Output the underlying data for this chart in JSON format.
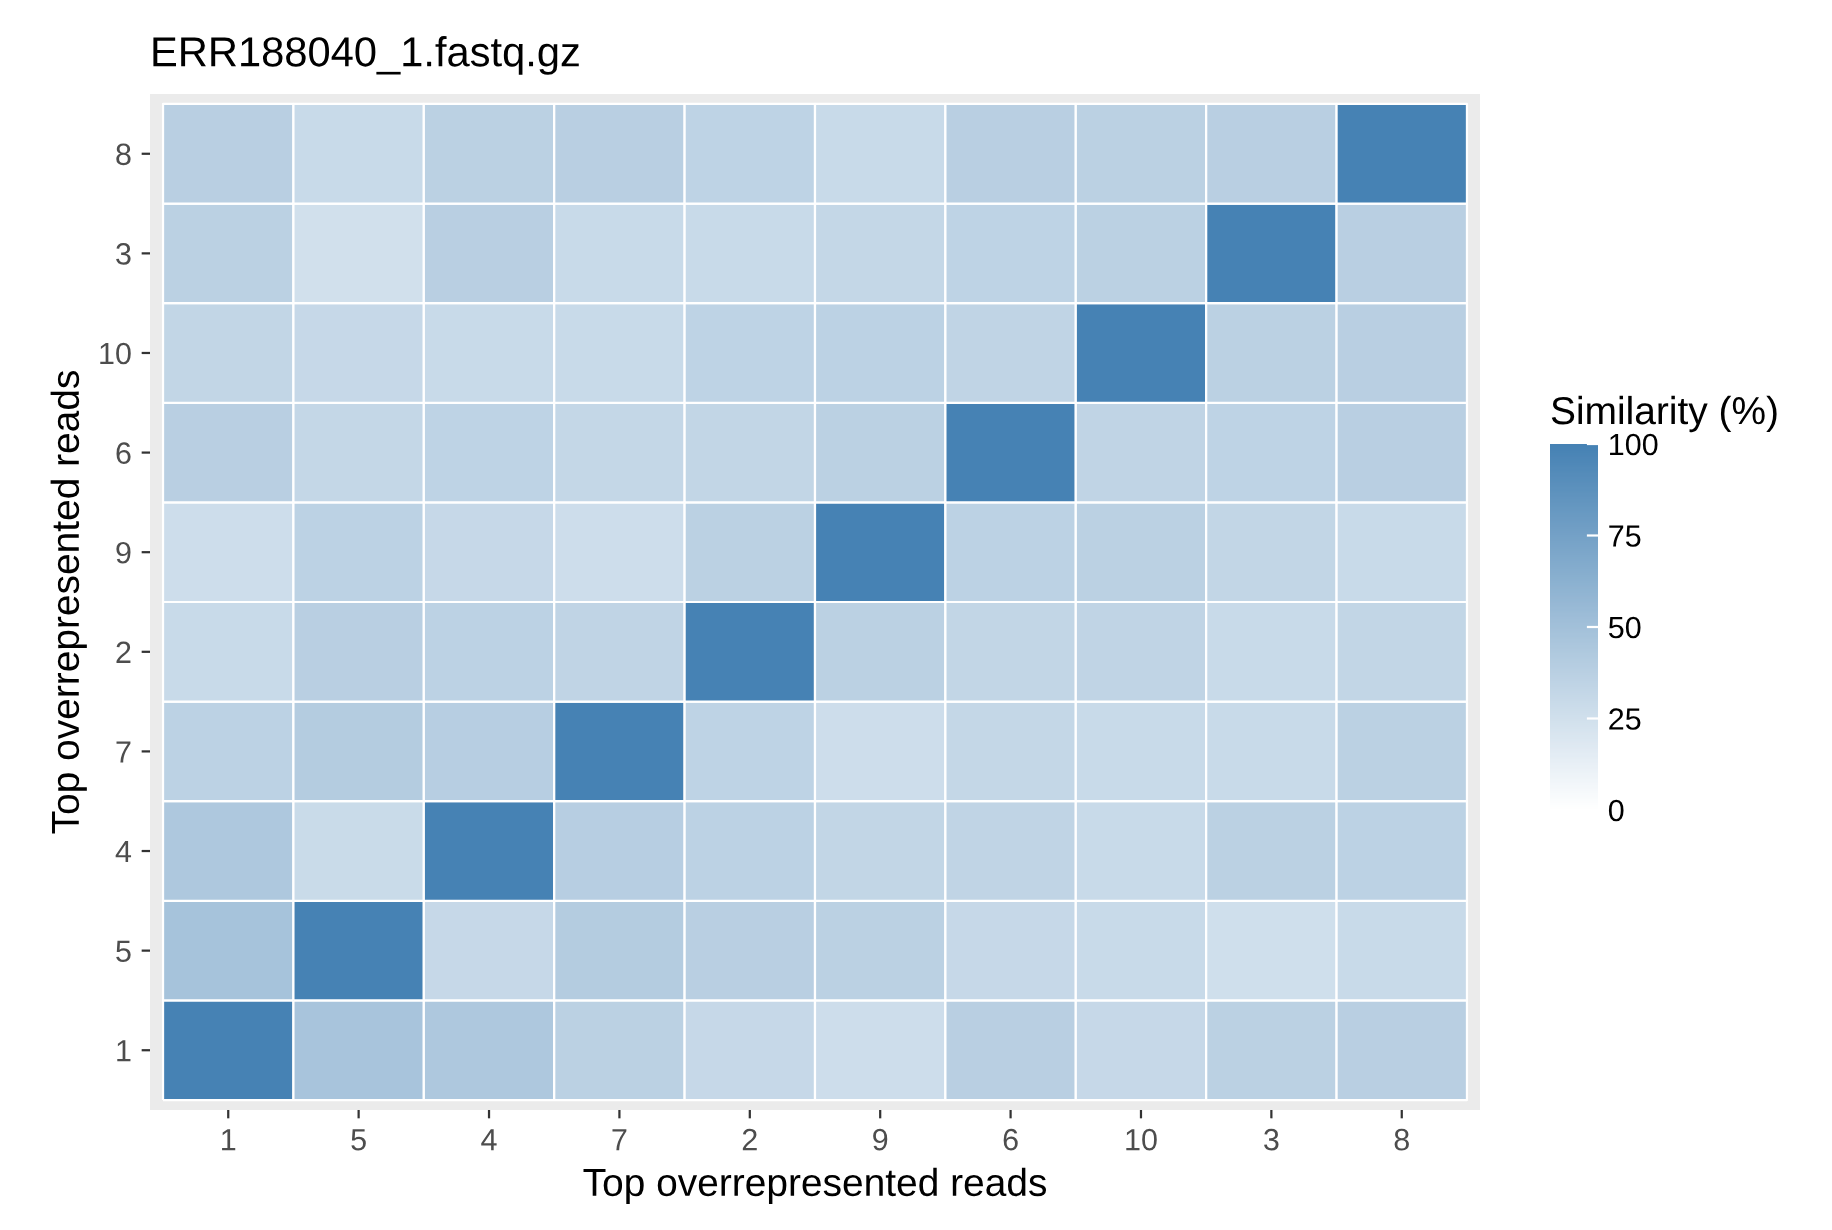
{
  "chart_data": {
    "type": "heatmap",
    "title": "ERR188040_1.fastq.gz",
    "xlabel": "Top overrepresented reads",
    "ylabel": "Top overrepresented reads",
    "clabel": "Similarity (%)",
    "categories": [
      "1",
      "5",
      "4",
      "7",
      "2",
      "9",
      "6",
      "10",
      "3",
      "8"
    ],
    "y_categories": [
      "8",
      "3",
      "10",
      "6",
      "9",
      "2",
      "7",
      "4",
      "5",
      "1"
    ],
    "cells": [
      [
        38,
        30,
        37,
        38,
        35,
        30,
        38,
        37,
        38,
        100
      ],
      [
        37,
        25,
        38,
        30,
        30,
        32,
        35,
        37,
        100,
        38
      ],
      [
        33,
        31,
        30,
        30,
        35,
        36,
        34,
        100,
        37,
        38
      ],
      [
        38,
        32,
        35,
        32,
        33,
        37,
        100,
        34,
        35,
        38
      ],
      [
        27,
        36,
        31,
        27,
        37,
        100,
        36,
        37,
        33,
        30
      ],
      [
        30,
        38,
        36,
        34,
        100,
        37,
        33,
        34,
        30,
        33
      ],
      [
        36,
        41,
        39,
        100,
        35,
        27,
        32,
        30,
        30,
        37
      ],
      [
        44,
        29,
        100,
        39,
        36,
        33,
        34,
        30,
        37,
        36
      ],
      [
        48,
        100,
        31,
        41,
        38,
        37,
        31,
        30,
        26,
        30
      ],
      [
        100,
        47,
        44,
        37,
        31,
        27,
        38,
        31,
        37,
        38
      ]
    ],
    "colors": [
      "#ffffff",
      "#4682b4"
    ],
    "clim": [
      0,
      100
    ],
    "cticks": [
      0,
      25,
      50,
      75,
      100
    ]
  }
}
